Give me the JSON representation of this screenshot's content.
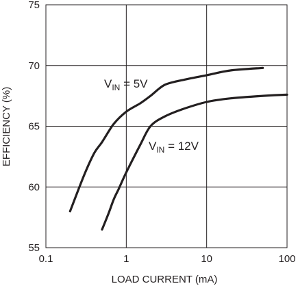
{
  "chart_data": {
    "type": "line",
    "x_scale": "log",
    "xlabel": "LOAD CURRENT (mA)",
    "ylabel": "EFFICIENCY (%)",
    "xlim": [
      0.1,
      100
    ],
    "ylim": [
      55,
      75
    ],
    "x_ticks": [
      0.1,
      1,
      10,
      100
    ],
    "x_tick_labels": [
      "0.1",
      "1",
      "10",
      "100"
    ],
    "y_ticks": [
      55,
      60,
      65,
      70,
      75
    ],
    "y_tick_labels": [
      "55",
      "60",
      "65",
      "70",
      "75"
    ],
    "grid": true,
    "series": [
      {
        "name": "VIN = 5V",
        "label_parts": {
          "main": "V",
          "sub": "IN",
          "rest": " = 5V"
        },
        "x": [
          0.2,
          0.3,
          0.4,
          0.5,
          0.7,
          1,
          1.5,
          2,
          3,
          5,
          10,
          20,
          50
        ],
        "y": [
          58.0,
          61.0,
          62.8,
          63.7,
          65.2,
          66.2,
          66.9,
          67.5,
          68.4,
          68.8,
          69.2,
          69.6,
          69.8
        ]
      },
      {
        "name": "VIN = 12V",
        "label_parts": {
          "main": "V",
          "sub": "IN",
          "rest": " = 12V"
        },
        "x": [
          0.5,
          0.6,
          0.7,
          0.8,
          1,
          1.5,
          2,
          3,
          5,
          10,
          20,
          50,
          100
        ],
        "y": [
          56.5,
          57.8,
          59.0,
          59.8,
          61.2,
          63.5,
          65.0,
          65.8,
          66.4,
          67.0,
          67.3,
          67.5,
          67.6
        ]
      }
    ]
  }
}
